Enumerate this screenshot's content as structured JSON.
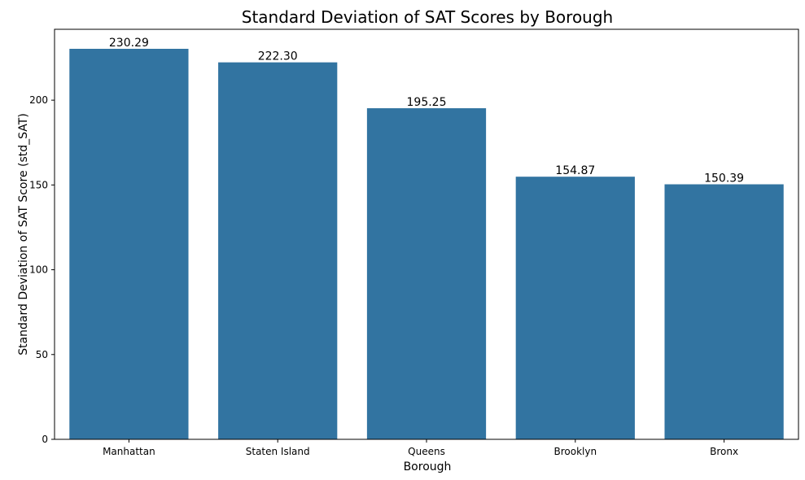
{
  "chart_data": {
    "type": "bar",
    "title": "Standard Deviation of SAT Scores by Borough",
    "xlabel": "Borough",
    "ylabel": "Standard Deviation of SAT Score (std_SAT)",
    "categories": [
      "Manhattan",
      "Staten Island",
      "Queens",
      "Brooklyn",
      "Bronx"
    ],
    "values": [
      230.29,
      222.3,
      195.25,
      154.87,
      150.39
    ],
    "data_labels": [
      "230.29",
      "222.30",
      "195.25",
      "154.87",
      "150.39"
    ],
    "ylim": [
      0,
      241.8
    ],
    "yticks": [
      0,
      50,
      100,
      150,
      200
    ],
    "grid": false,
    "legend": "none",
    "colors": {
      "bar": "#3274a1",
      "axis": "#000000",
      "text": "#000000",
      "background": "#ffffff"
    }
  }
}
